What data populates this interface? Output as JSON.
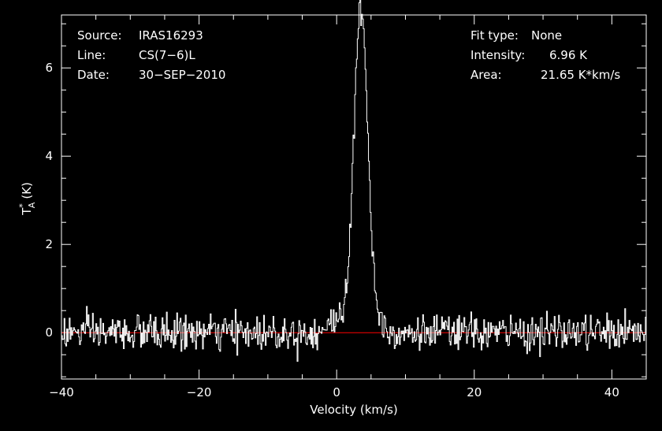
{
  "chart_data": {
    "type": "line",
    "xlabel": "Velocity (km/s)",
    "ylabel_main": "T",
    "ylabel_sub": "A",
    "ylabel_sup": "*",
    "ylabel_unit": "(K)",
    "xlim": [
      -40,
      45
    ],
    "ylim": [
      -1.05,
      7.2
    ],
    "x_ticks": [
      -40,
      -20,
      0,
      20,
      40
    ],
    "y_ticks": [
      0,
      2,
      4,
      6
    ],
    "x_tick_labels": [
      "−40",
      "−20",
      "0",
      "20",
      "40"
    ],
    "y_tick_labels": [
      "0",
      "2",
      "4",
      "6"
    ],
    "baseline": 0,
    "spectrum": {
      "v_start": -40,
      "v_step": 0.125,
      "noise_rms": 0.2,
      "line_center": 3.5,
      "peak": 6.96,
      "fit_area": 21.65
    },
    "colors": {
      "background": "#000000",
      "frame": "#ffffff",
      "spectrum": "#ffffff",
      "baseline": "#ff0000"
    },
    "info_left": [
      {
        "key": "Source:",
        "value": "IRAS16293"
      },
      {
        "key": "Line:",
        "value": "CS(7−6)L"
      },
      {
        "key": "Date:",
        "value": "30−SEP−2010"
      }
    ],
    "info_right": [
      {
        "key": "Fit type:",
        "value": "None"
      },
      {
        "key": "Intensity:",
        "value": "6.96 K"
      },
      {
        "key": "Area:",
        "value": "21.65 K*km/s"
      }
    ]
  }
}
